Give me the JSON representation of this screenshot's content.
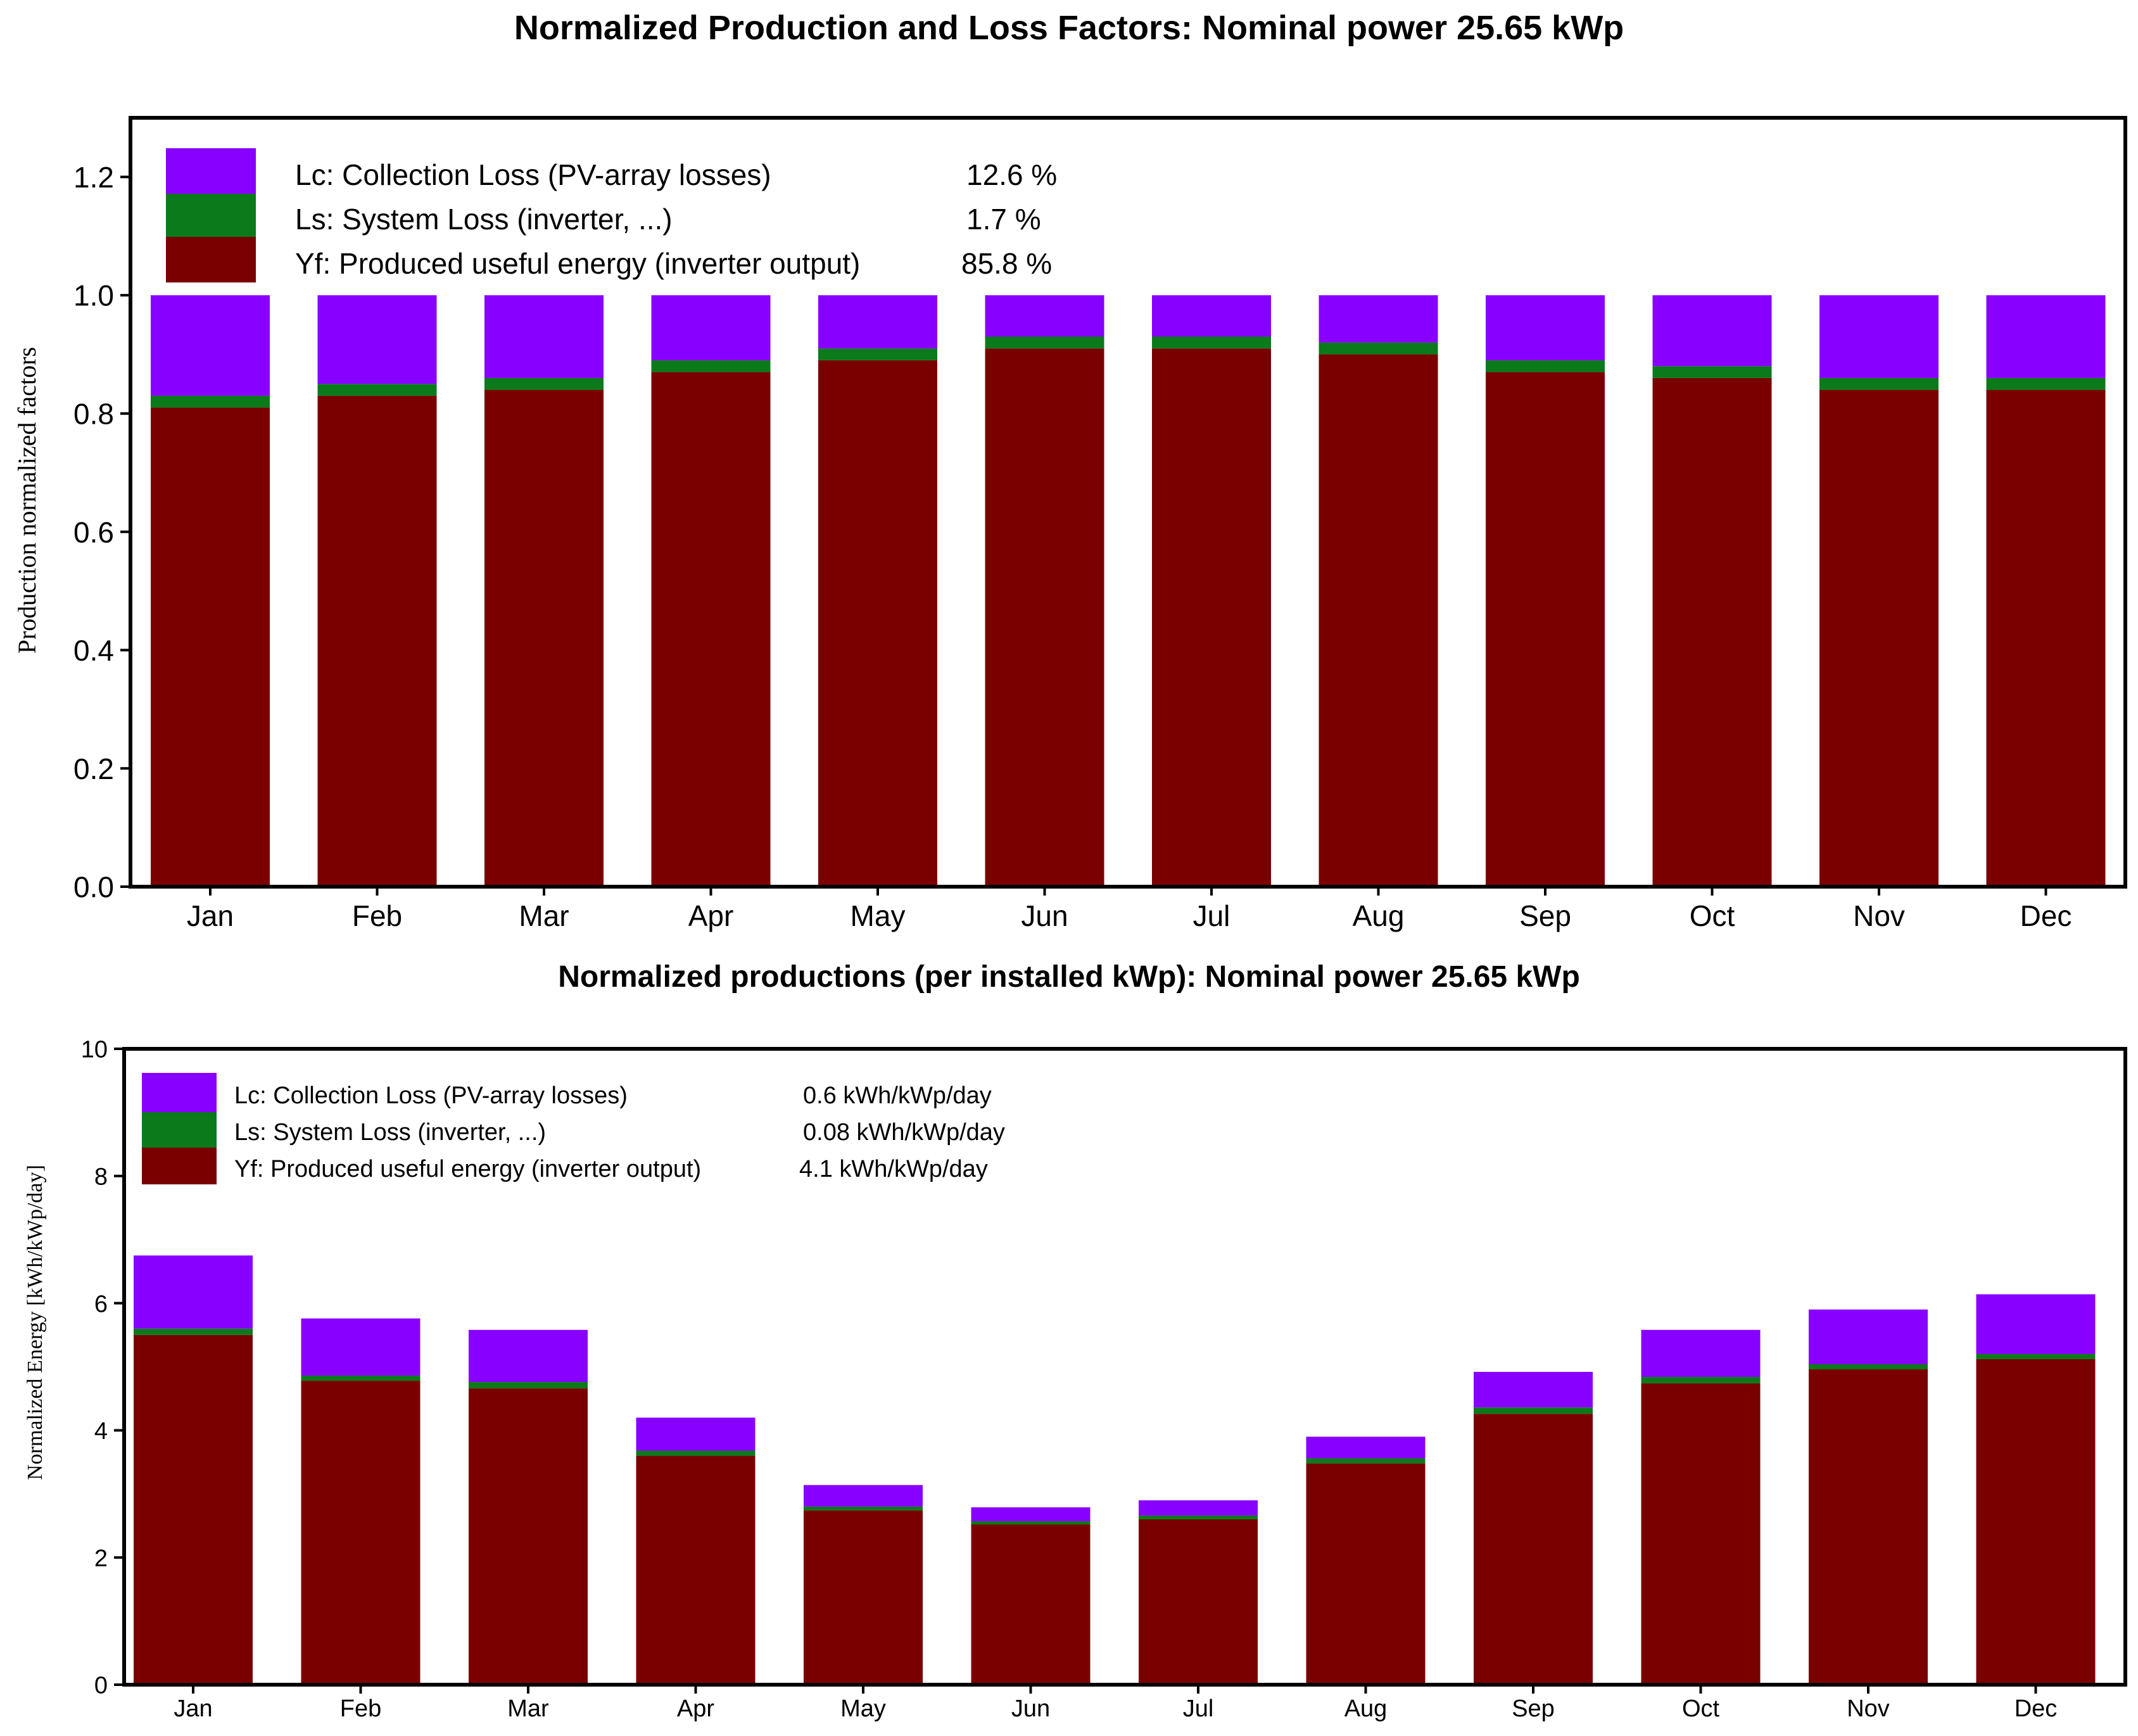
{
  "colors": {
    "lc": "#8800ff",
    "ls": "#0a7a1a",
    "yf": "#7a0000",
    "axis": "#000000"
  },
  "chart_data": [
    {
      "type": "bar",
      "stacked": true,
      "title": "Normalized Production and Loss Factors:  Nominal power 25.65 kWp",
      "xlabel": "",
      "ylabel": "Production normalized factors",
      "ylim": [
        0,
        1.3
      ],
      "yticks": [
        "0.0",
        "0.2",
        "0.4",
        "0.6",
        "0.8",
        "1.0",
        "1.2"
      ],
      "categories": [
        "Jan",
        "Feb",
        "Mar",
        "Apr",
        "May",
        "Jun",
        "Jul",
        "Aug",
        "Sep",
        "Oct",
        "Nov",
        "Dec"
      ],
      "series": [
        {
          "name": "Yf",
          "values": [
            0.81,
            0.83,
            0.84,
            0.87,
            0.89,
            0.91,
            0.91,
            0.9,
            0.87,
            0.86,
            0.84,
            0.84
          ]
        },
        {
          "name": "Ls",
          "values": [
            0.02,
            0.02,
            0.02,
            0.02,
            0.02,
            0.02,
            0.02,
            0.02,
            0.02,
            0.02,
            0.02,
            0.02
          ]
        },
        {
          "name": "Lc",
          "values": [
            0.17,
            0.15,
            0.14,
            0.11,
            0.09,
            0.07,
            0.07,
            0.08,
            0.11,
            0.12,
            0.14,
            0.14
          ]
        }
      ],
      "legend": [
        {
          "key": "lc",
          "label": "Lc: Collection Loss (PV-array losses)",
          "value": "12.6 %"
        },
        {
          "key": "ls",
          "label": "Ls: System Loss  (inverter, ...)",
          "value": "1.7 %"
        },
        {
          "key": "yf",
          "label": "Yf: Produced useful energy  (inverter output)",
          "value": "85.8 %"
        }
      ]
    },
    {
      "type": "bar",
      "stacked": true,
      "title": "Normalized productions (per installed kWp):  Nominal power 25.65 kWp",
      "xlabel": "",
      "ylabel": "Normalized Energy  [kWh/kWp/day]",
      "ylim": [
        0,
        10
      ],
      "yticks": [
        "0",
        "2",
        "4",
        "6",
        "8",
        "10"
      ],
      "categories": [
        "Jan",
        "Feb",
        "Mar",
        "Apr",
        "May",
        "Jun",
        "Jul",
        "Aug",
        "Sep",
        "Oct",
        "Nov",
        "Dec"
      ],
      "series": [
        {
          "name": "Yf",
          "values": [
            5.5,
            4.78,
            4.66,
            3.6,
            2.74,
            2.52,
            2.6,
            3.48,
            4.26,
            4.74,
            4.96,
            5.12
          ]
        },
        {
          "name": "Ls",
          "values": [
            0.1,
            0.08,
            0.1,
            0.08,
            0.06,
            0.05,
            0.06,
            0.08,
            0.1,
            0.1,
            0.08,
            0.08
          ]
        },
        {
          "name": "Lc",
          "values": [
            1.15,
            0.9,
            0.82,
            0.52,
            0.34,
            0.22,
            0.24,
            0.34,
            0.56,
            0.74,
            0.86,
            0.94
          ]
        }
      ],
      "legend": [
        {
          "key": "lc",
          "label": "Lc: Collection Loss (PV-array losses)",
          "value": "0.6 kWh/kWp/day"
        },
        {
          "key": "ls",
          "label": "Ls: System Loss  (inverter, ...)",
          "value": "0.08 kWh/kWp/day"
        },
        {
          "key": "yf",
          "label": "Yf: Produced useful energy  (inverter output)",
          "value": "4.1 kWh/kWp/day"
        }
      ]
    }
  ]
}
